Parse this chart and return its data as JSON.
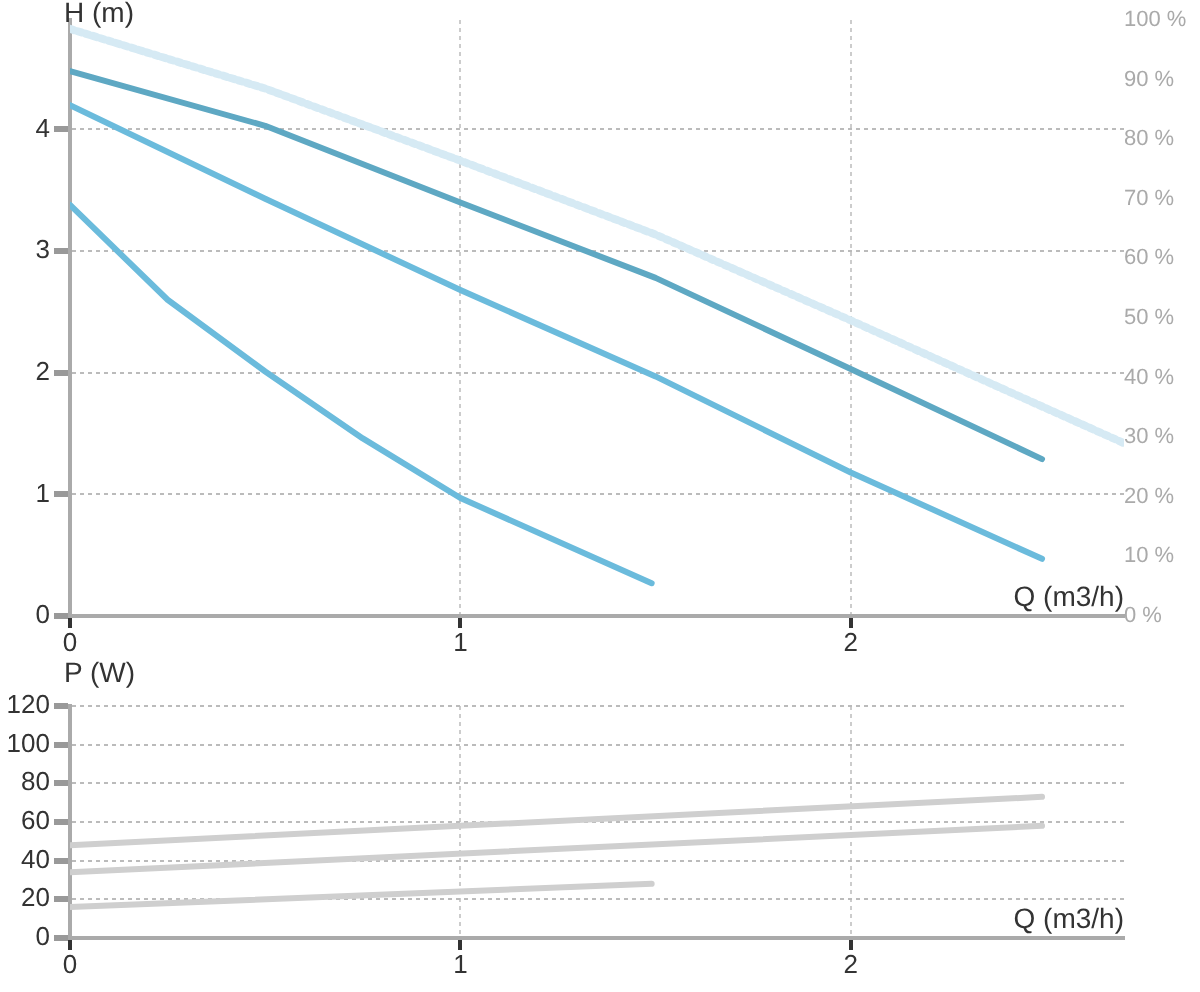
{
  "chart_data": [
    {
      "type": "line",
      "xlabel": "Q (m3/h)",
      "ylabel": "H (m)",
      "xlim": [
        0,
        2.7
      ],
      "xticks": [
        0,
        1,
        2
      ],
      "ylim": [
        0,
        4.9
      ],
      "yticks": [
        0,
        1,
        2,
        3,
        4
      ],
      "y2lim": [
        0,
        100
      ],
      "y2ticks": [
        {
          "value": 0,
          "label": "0 %"
        },
        {
          "value": 10,
          "label": "10 %"
        },
        {
          "value": 20,
          "label": "20 %"
        },
        {
          "value": 30,
          "label": "30 %"
        },
        {
          "value": 40,
          "label": "40 %"
        },
        {
          "value": 50,
          "label": "50 %"
        },
        {
          "value": 60,
          "label": "60 %"
        },
        {
          "value": 70,
          "label": "70 %"
        },
        {
          "value": 80,
          "label": "80 %"
        },
        {
          "value": 90,
          "label": "90 %"
        },
        {
          "value": 100,
          "label": "100 %"
        }
      ],
      "grid": true,
      "legend": false,
      "marker": "none",
      "series": [
        {
          "color": "#d6eaf4",
          "axis": "y2",
          "line_style": "dotted",
          "x": [
            0,
            0.5,
            1,
            1.5,
            2,
            2.4,
            2.7
          ],
          "values": [
            98.5,
            88.5,
            76.4,
            64,
            49.6,
            37.8,
            29
          ]
        },
        {
          "color": "#5ea8c3",
          "line_style": "solid",
          "x": [
            0,
            0.5,
            1,
            1.5,
            2,
            2.49
          ],
          "values": [
            4.48,
            4.03,
            3.4,
            2.78,
            2.03,
            1.29
          ]
        },
        {
          "color": "#6bbbdc",
          "line_style": "solid",
          "x": [
            0,
            0.5,
            1,
            1.5,
            2,
            2.49
          ],
          "values": [
            4.2,
            3.43,
            2.68,
            1.97,
            1.18,
            0.47
          ]
        },
        {
          "color": "#6bbbdc",
          "line_style": "solid",
          "x": [
            0,
            0.25,
            0.5,
            0.75,
            1,
            1.49
          ],
          "values": [
            3.38,
            2.6,
            2.01,
            1.46,
            0.97,
            0.27
          ]
        }
      ]
    },
    {
      "type": "line",
      "xlabel": "Q (m3/h)",
      "ylabel": "P (W)",
      "xlim": [
        0,
        2.7
      ],
      "xticks": [
        0,
        1,
        2
      ],
      "ylim": [
        0,
        120
      ],
      "yticks": [
        0,
        20,
        40,
        60,
        80,
        100,
        120
      ],
      "grid": true,
      "legend": false,
      "marker": "none",
      "series": [
        {
          "color": "#cfcfcf",
          "line_style": "solid",
          "x": [
            0,
            2.49
          ],
          "values": [
            48,
            73
          ]
        },
        {
          "color": "#cfcfcf",
          "line_style": "solid",
          "x": [
            0,
            2.49
          ],
          "values": [
            34,
            58
          ]
        },
        {
          "color": "#cfcfcf",
          "line_style": "solid",
          "x": [
            0,
            1.49
          ],
          "values": [
            16,
            28
          ]
        }
      ]
    }
  ]
}
